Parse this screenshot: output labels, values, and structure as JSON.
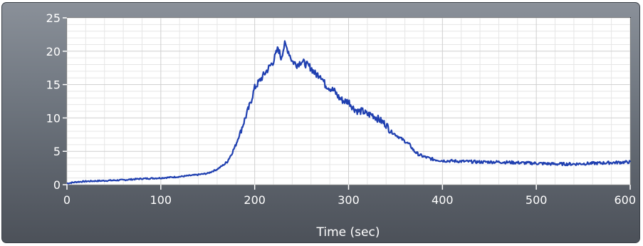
{
  "chart_data": {
    "type": "line",
    "xlabel": "Time (sec)",
    "ylabel": "",
    "xlim": [
      0,
      600
    ],
    "ylim": [
      0,
      25
    ],
    "x_ticks": [
      "0",
      "100",
      "200",
      "300",
      "400",
      "500",
      "600"
    ],
    "y_ticks": [
      "0",
      "5",
      "10",
      "15",
      "20",
      "25"
    ],
    "grid": true,
    "series": [
      {
        "color": "#1f3fb0",
        "points": [
          [
            0,
            0.2
          ],
          [
            10,
            0.4
          ],
          [
            20,
            0.5
          ],
          [
            40,
            0.6
          ],
          [
            60,
            0.7
          ],
          [
            80,
            0.9
          ],
          [
            100,
            1.0
          ],
          [
            120,
            1.2
          ],
          [
            140,
            1.5
          ],
          [
            150,
            1.7
          ],
          [
            160,
            2.3
          ],
          [
            170,
            3.3
          ],
          [
            175,
            4.5
          ],
          [
            180,
            6.0
          ],
          [
            185,
            8.0
          ],
          [
            190,
            10.0
          ],
          [
            195,
            12.0
          ],
          [
            200,
            14.5
          ],
          [
            205,
            15.5
          ],
          [
            210,
            16.5
          ],
          [
            215,
            17.5
          ],
          [
            220,
            18.5
          ],
          [
            225,
            20.5
          ],
          [
            228,
            19.0
          ],
          [
            232,
            21.0
          ],
          [
            236,
            20.0
          ],
          [
            240,
            18.5
          ],
          [
            245,
            18.0
          ],
          [
            250,
            18.5
          ],
          [
            255,
            18.0
          ],
          [
            260,
            17.5
          ],
          [
            265,
            16.5
          ],
          [
            270,
            16.5
          ],
          [
            275,
            15.0
          ],
          [
            280,
            14.5
          ],
          [
            285,
            14.0
          ],
          [
            290,
            13.0
          ],
          [
            295,
            12.5
          ],
          [
            300,
            12.5
          ],
          [
            305,
            11.5
          ],
          [
            310,
            11.0
          ],
          [
            315,
            11.0
          ],
          [
            320,
            10.5
          ],
          [
            325,
            10.5
          ],
          [
            330,
            10.0
          ],
          [
            335,
            9.5
          ],
          [
            340,
            9.0
          ],
          [
            345,
            8.0
          ],
          [
            350,
            7.5
          ],
          [
            355,
            7.0
          ],
          [
            360,
            6.5
          ],
          [
            365,
            6.0
          ],
          [
            370,
            5.0
          ],
          [
            375,
            4.5
          ],
          [
            380,
            4.2
          ],
          [
            385,
            4.0
          ],
          [
            390,
            3.8
          ],
          [
            400,
            3.6
          ],
          [
            420,
            3.5
          ],
          [
            440,
            3.4
          ],
          [
            460,
            3.4
          ],
          [
            480,
            3.3
          ],
          [
            500,
            3.2
          ],
          [
            520,
            3.1
          ],
          [
            540,
            3.1
          ],
          [
            560,
            3.2
          ],
          [
            580,
            3.3
          ],
          [
            600,
            3.4
          ]
        ]
      }
    ]
  }
}
